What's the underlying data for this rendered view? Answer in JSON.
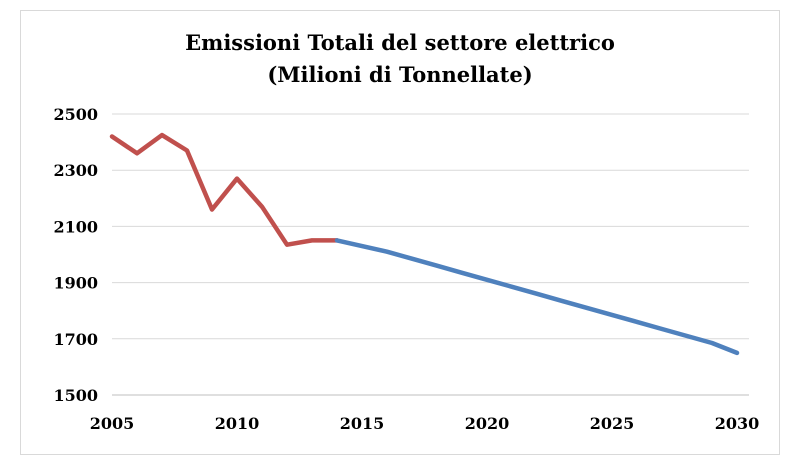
{
  "chart_data": {
    "type": "line",
    "title": "Emissioni Totali del settore elettrico",
    "subtitle": "(Milioni di Tonnellate)",
    "xlabel": "",
    "ylabel": "",
    "xlim": [
      2005,
      2030
    ],
    "ylim": [
      1500,
      2500
    ],
    "x_ticks": [
      "2005",
      "2010",
      "2015",
      "2020",
      "2025",
      "2030"
    ],
    "y_ticks": [
      "2500",
      "2300",
      "2100",
      "1900",
      "1700",
      "1500"
    ],
    "grid": "horizontal",
    "legend": "none",
    "series": [
      {
        "color": "#c0504d",
        "points": [
          {
            "x": 2005,
            "y": 2420
          },
          {
            "x": 2006,
            "y": 2360
          },
          {
            "x": 2007,
            "y": 2425
          },
          {
            "x": 2008,
            "y": 2370
          },
          {
            "x": 2009,
            "y": 2160
          },
          {
            "x": 2010,
            "y": 2270
          },
          {
            "x": 2011,
            "y": 2170
          },
          {
            "x": 2012,
            "y": 2035
          },
          {
            "x": 2013,
            "y": 2050
          },
          {
            "x": 2014,
            "y": 2050
          }
        ]
      },
      {
        "color": "#4f81bd",
        "points": [
          {
            "x": 2014,
            "y": 2050
          },
          {
            "x": 2015,
            "y": 2030
          },
          {
            "x": 2016,
            "y": 2010
          },
          {
            "x": 2017,
            "y": 1985
          },
          {
            "x": 2018,
            "y": 1960
          },
          {
            "x": 2019,
            "y": 1935
          },
          {
            "x": 2020,
            "y": 1910
          },
          {
            "x": 2021,
            "y": 1885
          },
          {
            "x": 2022,
            "y": 1860
          },
          {
            "x": 2023,
            "y": 1835
          },
          {
            "x": 2024,
            "y": 1810
          },
          {
            "x": 2025,
            "y": 1785
          },
          {
            "x": 2026,
            "y": 1760
          },
          {
            "x": 2027,
            "y": 1735
          },
          {
            "x": 2028,
            "y": 1710
          },
          {
            "x": 2029,
            "y": 1685
          },
          {
            "x": 2030,
            "y": 1650
          }
        ]
      }
    ]
  }
}
